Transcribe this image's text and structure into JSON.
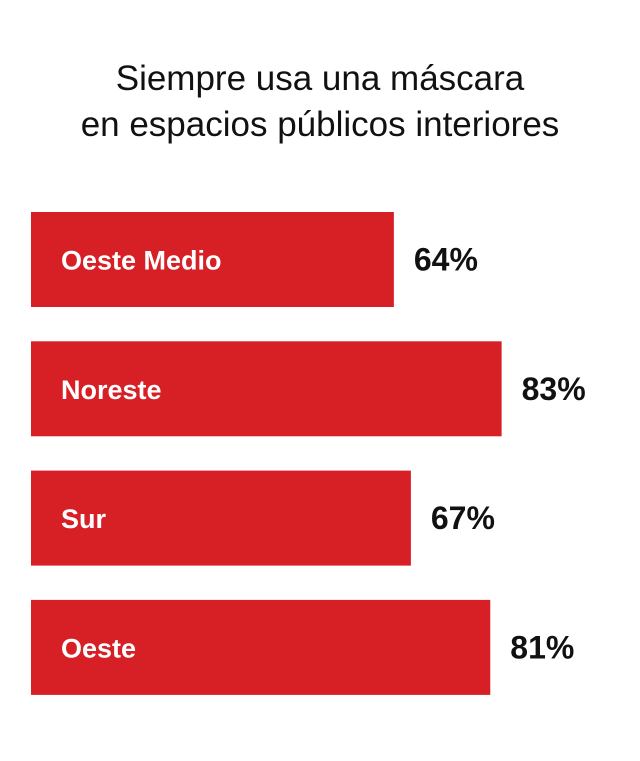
{
  "chart_data": {
    "type": "bar",
    "orientation": "horizontal",
    "title_lines": [
      "Siempre usa una máscara",
      "en espacios públicos interiores"
    ],
    "categories": [
      "Oeste Medio",
      "Noreste",
      "Sur",
      "Oeste"
    ],
    "values": [
      64,
      83,
      67,
      81
    ],
    "value_labels": [
      "64%",
      "83%",
      "67%",
      "81%"
    ],
    "unit": "%",
    "xlim": [
      0,
      100
    ],
    "grid": false,
    "legend": "none",
    "bar_color": "#d71f26",
    "label_color": "#ffffff",
    "value_color": "#111111"
  }
}
